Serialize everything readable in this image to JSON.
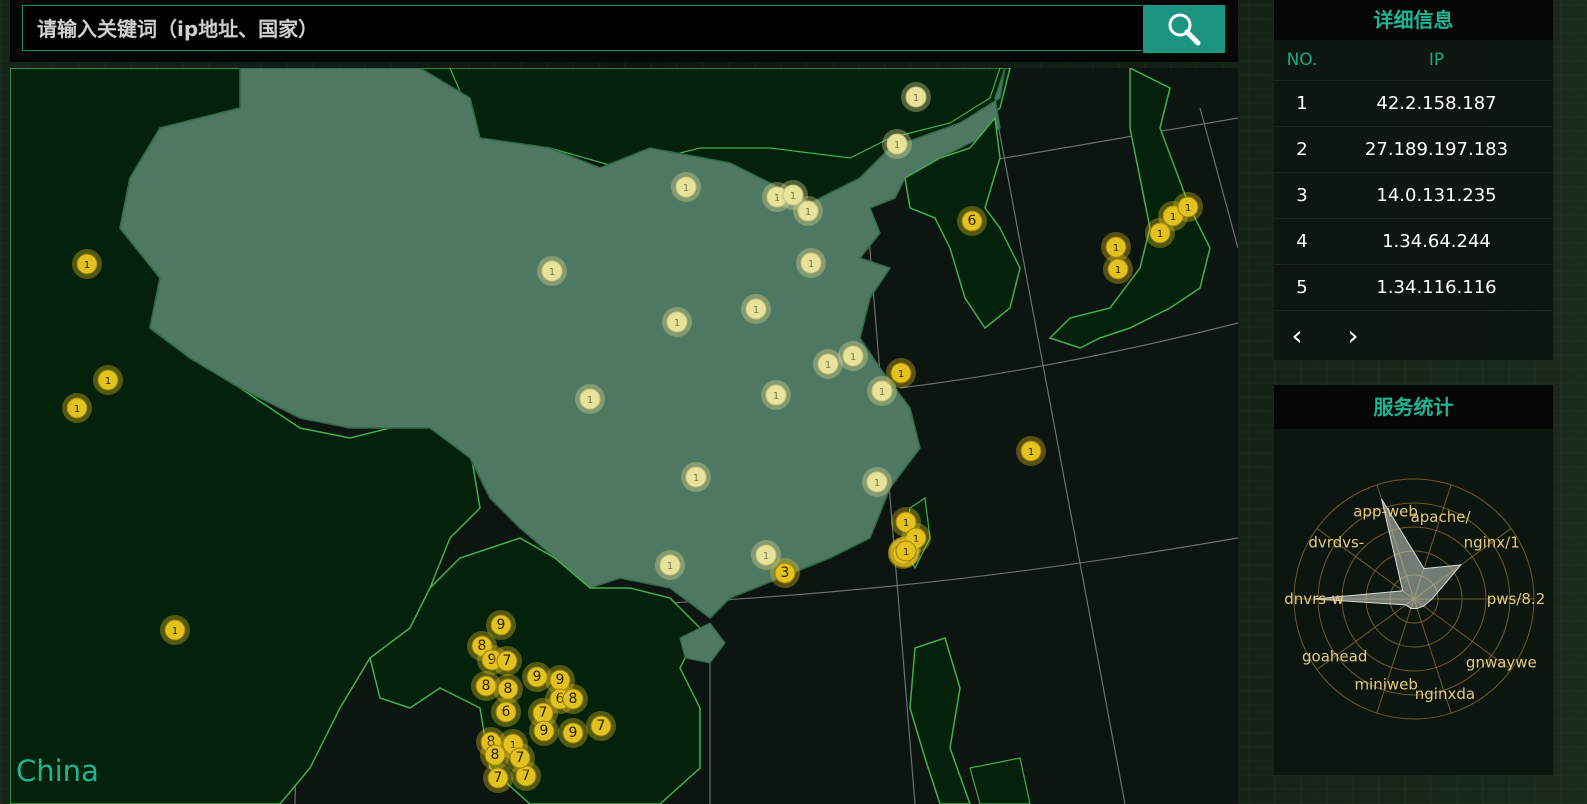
{
  "search": {
    "placeholder": "请输入关键词（ip地址、国家）",
    "button_icon": "search-icon"
  },
  "map": {
    "region_label": "China",
    "markers": [
      "1",
      "1",
      "1",
      "1",
      "1",
      "1",
      "1",
      "1",
      "1",
      "1",
      "1",
      "1",
      "1",
      "1",
      "1",
      "1",
      "1",
      "1",
      "1",
      "1",
      "1",
      "1",
      "1",
      "1",
      "1",
      "1",
      "1",
      "1",
      "6",
      "1",
      "1",
      "1",
      "1",
      "1",
      "1",
      "1",
      "1",
      "1",
      "3",
      "9",
      "8",
      "9",
      "7",
      "8",
      "8",
      "6",
      "9",
      "9",
      "6",
      "8",
      "7",
      "9",
      "9",
      "7",
      "8",
      "8",
      "1",
      "7",
      "7",
      "7"
    ]
  },
  "detail": {
    "title": "详细信息",
    "col_no": "NO.",
    "col_ip": "IP",
    "rows": [
      {
        "no": "1",
        "ip": "42.2.158.187"
      },
      {
        "no": "2",
        "ip": "27.189.197.183"
      },
      {
        "no": "3",
        "ip": "14.0.131.235"
      },
      {
        "no": "4",
        "ip": "1.34.64.244"
      },
      {
        "no": "5",
        "ip": "1.34.116.116"
      }
    ],
    "prev": "‹",
    "next": "›"
  },
  "stats": {
    "title": "服务统计",
    "labels": [
      "apache/",
      "nginx/1",
      "pws/8.2",
      "gnwaywe",
      "nginxda",
      "miniweb",
      "goahead",
      "dnvrs-w",
      "dvrdvs-",
      "app-web"
    ]
  },
  "colors": {
    "accent": "#1fb592",
    "marker": "#e4c21e",
    "china_fill": "#4f7862",
    "land": "#04210b"
  }
}
